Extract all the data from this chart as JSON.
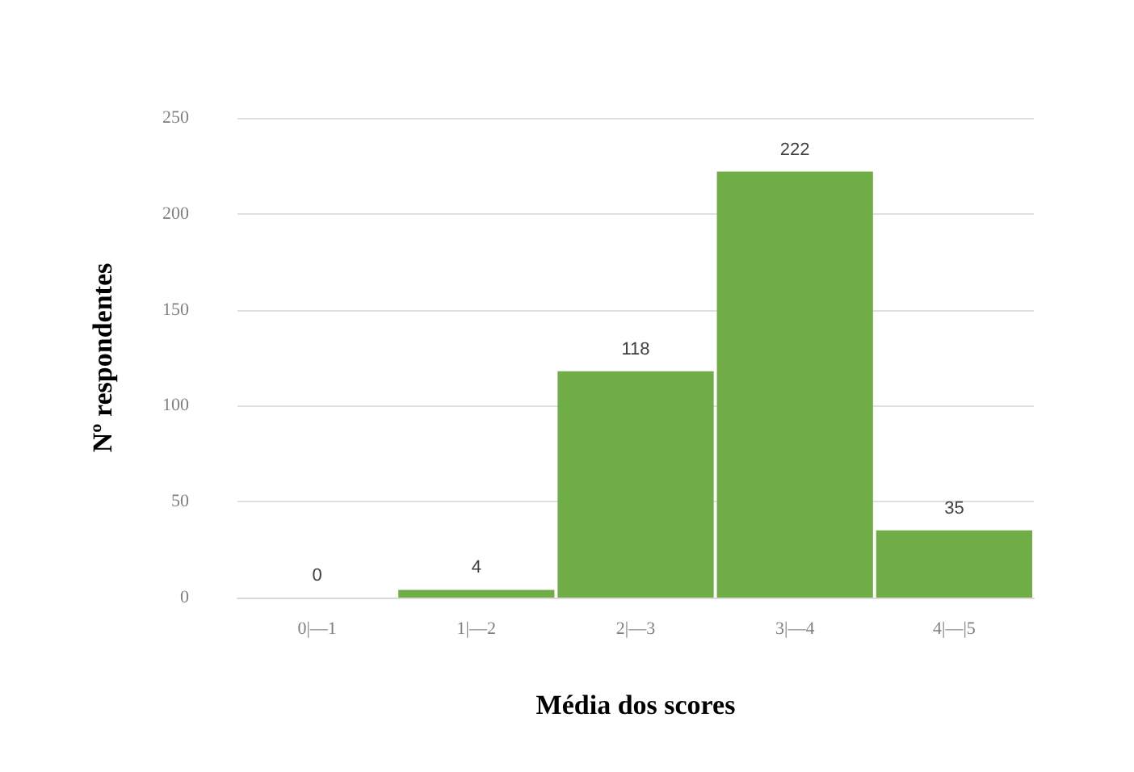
{
  "chart_data": {
    "type": "bar",
    "xlabel": "Média dos scores",
    "ylabel": "Nº respondentes",
    "categories": [
      "0|—1",
      "1|—2",
      "2|—3",
      "3|—4",
      "4|—|5"
    ],
    "values": [
      0,
      4,
      118,
      222,
      35
    ],
    "color": "#70ad47",
    "ylim": [
      0,
      250
    ],
    "yticks": [
      0,
      50,
      100,
      150,
      200,
      250
    ],
    "grid": "y",
    "data_labels": true
  }
}
